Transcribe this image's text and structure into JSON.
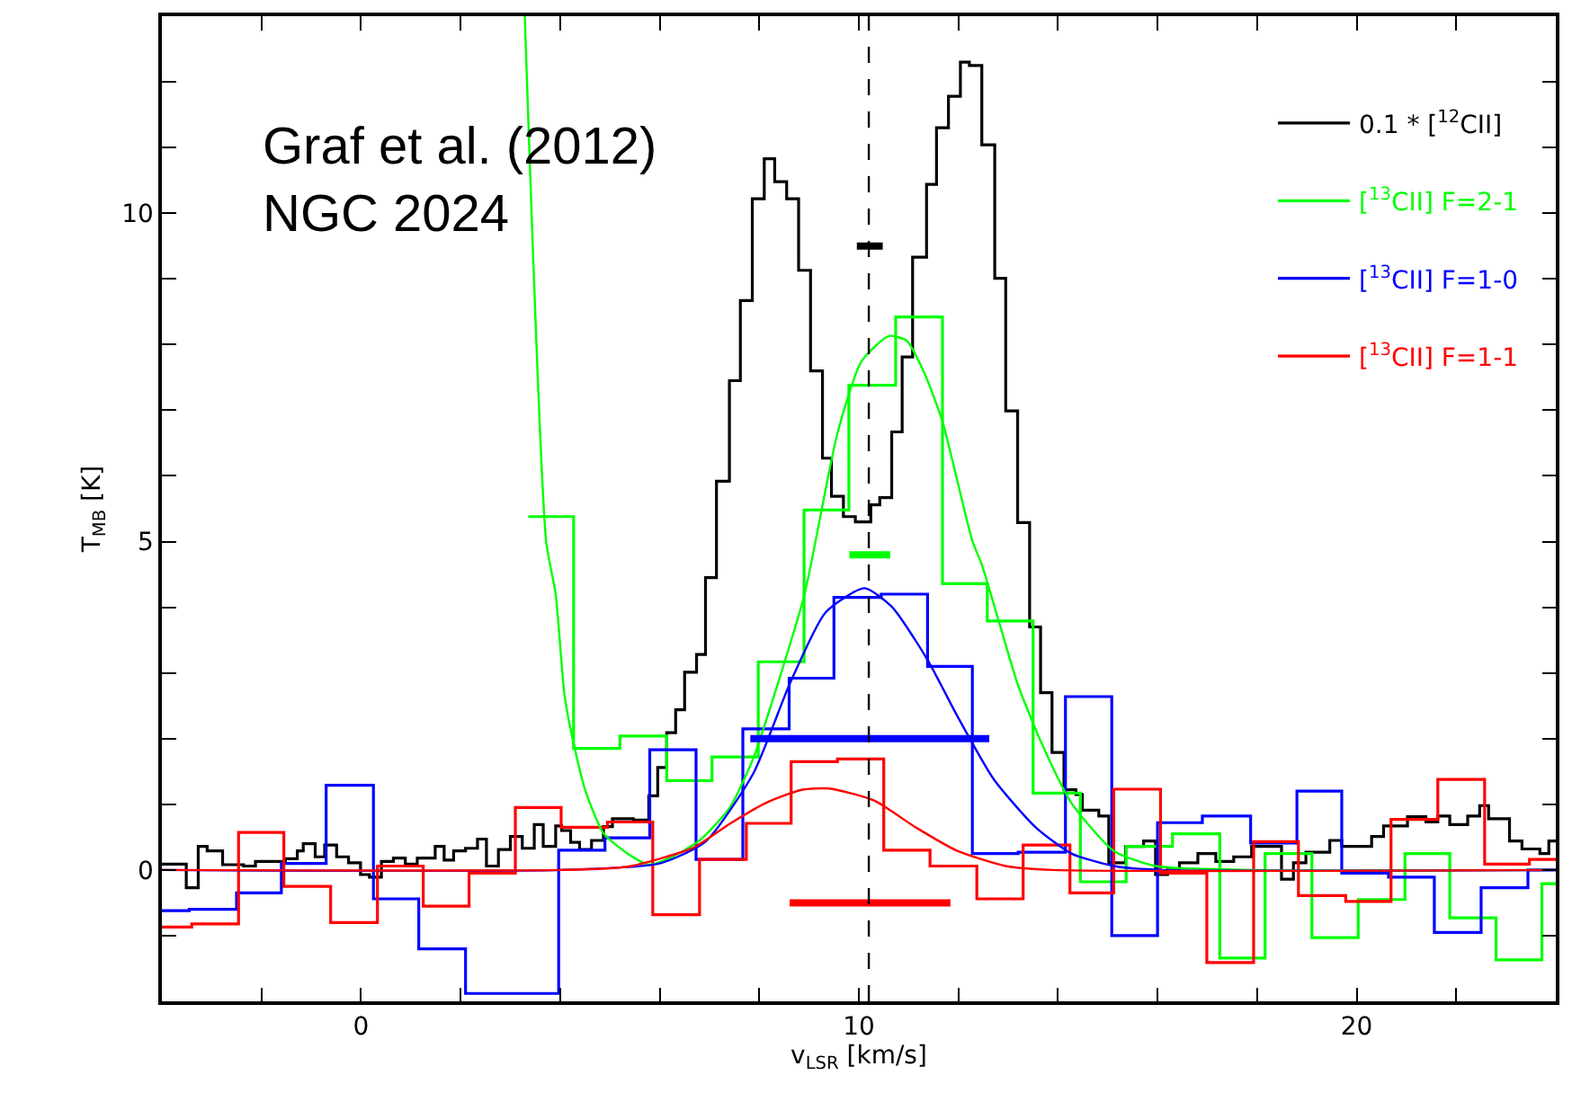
{
  "chart_data": {
    "type": "step",
    "xlabel": "v$_{LSR}$ [km/s]",
    "ylabel": "T$_{MB}$ [K]",
    "annotations": [
      "Graf et al. (2012)\nNGC 2024"
    ],
    "xlim": [
      -4,
      24
    ],
    "ylim": [
      -2,
      13
    ],
    "xticks": [
      {
        "value": -4,
        "label": null
      },
      {
        "value": -2,
        "label": null
      },
      0,
      {
        "value": 2,
        "label": null
      },
      {
        "value": 4,
        "label": null
      },
      {
        "value": 6,
        "label": null
      },
      {
        "value": 8,
        "label": null
      },
      10,
      {
        "value": 12,
        "label": null
      },
      {
        "value": 14,
        "label": null
      },
      {
        "value": 16,
        "label": null
      },
      {
        "value": 18,
        "label": null
      },
      20,
      {
        "value": 22,
        "label": null
      },
      {
        "value": 24,
        "label": null
      }
    ],
    "yticks": [
      {
        "value": -2,
        "label": null
      },
      {
        "value": -1,
        "label": null
      },
      0,
      {
        "value": 1,
        "label": null
      },
      {
        "value": 2,
        "label": null
      },
      {
        "value": 3,
        "label": null
      },
      {
        "value": 4,
        "label": null
      },
      5,
      {
        "value": 6,
        "label": null
      },
      {
        "value": 7,
        "label": null
      },
      {
        "value": 8,
        "label": null
      },
      {
        "value": 9,
        "label": null
      },
      10,
      {
        "value": 11,
        "label": null
      },
      {
        "value": 12,
        "label": null
      },
      {
        "value": 13,
        "label": null
      }
    ],
    "legend": "top right",
    "marker": "none",
    "line_style": "solid",
    "ref_lines": [
      {
        "axis": "x",
        "value": 10.2,
        "label": null,
        "color": "#000000",
        "line_style": "dashed"
      }
    ],
    "series": [
      {
        "name": "0.1 * [$^{12}$CII]",
        "color": "#000000",
        "x": [
          -4,
          -3.51,
          -3.27,
          -3.09,
          -2.78,
          -2.36,
          -2.12,
          -1.52,
          -1.28,
          -1.16,
          -0.92,
          -0.73,
          -0.49,
          -0.25,
          -0.01,
          0.17,
          0.41,
          0.65,
          0.89,
          1.13,
          1.49,
          1.67,
          1.86,
          2.1,
          2.34,
          2.52,
          2.76,
          3.0,
          3.24,
          3.48,
          3.66,
          3.91,
          4.03,
          4.21,
          4.39,
          4.63,
          4.87,
          5.05,
          5.47,
          5.78,
          5.96,
          6.14,
          6.32,
          6.5,
          6.74,
          6.92,
          7.14,
          7.4,
          7.62,
          7.86,
          8.1,
          8.31,
          8.55,
          8.79,
          9.03,
          9.27,
          9.45,
          9.69,
          9.93,
          10.24,
          10.42,
          10.66,
          10.87,
          11.08,
          11.36,
          11.56,
          11.8,
          12.04,
          12.22,
          12.47,
          12.73,
          12.95,
          13.19,
          13.43,
          13.65,
          13.88,
          14.12,
          14.36,
          14.49,
          14.82,
          15.02,
          15.36,
          15.72,
          15.96,
          16.2,
          16.44,
          16.81,
          17.17,
          17.53,
          17.89,
          18.49,
          18.73,
          18.98,
          19.46,
          19.7,
          20.3,
          20.54,
          21.02,
          21.39,
          21.63,
          21.87,
          22.23,
          22.47,
          22.65,
          23.07,
          23.32,
          23.68,
          23.86,
          24
        ],
        "values": [
          0.09,
          -0.27,
          0.36,
          0.29,
          0.08,
          0.06,
          0.13,
          0.17,
          0.29,
          0.4,
          0.2,
          0.38,
          0.2,
          0.11,
          -0.07,
          -0.11,
          0.13,
          0.18,
          0.09,
          0.18,
          0.36,
          0.15,
          0.29,
          0.33,
          0.47,
          0.06,
          0.31,
          0.51,
          0.33,
          0.69,
          0.36,
          0.67,
          0.6,
          0.42,
          0.31,
          0.45,
          0.66,
          0.78,
          0.76,
          1.13,
          1.56,
          2.09,
          2.44,
          3.01,
          3.28,
          4.45,
          5.92,
          7.45,
          8.67,
          10.22,
          10.83,
          10.48,
          10.22,
          9.13,
          7.6,
          6.27,
          5.69,
          5.38,
          5.3,
          5.56,
          5.67,
          6.67,
          7.81,
          9.33,
          10.44,
          11.3,
          11.78,
          12.3,
          12.25,
          11.04,
          9.01,
          6.99,
          5.29,
          3.7,
          2.7,
          1.79,
          1.22,
          1.15,
          0.91,
          0.82,
          0.11,
          0.36,
          0.44,
          -0.07,
          0.0,
          0.11,
          0.25,
          0.13,
          0.2,
          0.36,
          -0.14,
          0.11,
          0.27,
          0.45,
          0.36,
          0.51,
          0.67,
          0.81,
          0.73,
          0.82,
          0.69,
          0.82,
          0.98,
          0.78,
          0.44,
          0.32,
          0.25,
          0.44,
          0.44
        ]
      },
      {
        "name": "[$^{13}$CII] F=2-1",
        "color": "#00ff00",
        "x": [
          3.36,
          4.27,
          5.2,
          6.14,
          7.05,
          7.98,
          8.9,
          9.8,
          10.74,
          11.68,
          12.58,
          13.5,
          14.45,
          15.37,
          16.3,
          17.25,
          18.16,
          19.1,
          20.03,
          20.97,
          21.87,
          22.8,
          23.72,
          24
        ],
        "values": [
          5.38,
          1.85,
          2.04,
          1.36,
          1.72,
          3.17,
          5.48,
          7.38,
          8.42,
          4.36,
          3.79,
          1.17,
          -0.18,
          0.36,
          0.55,
          -1.34,
          0.25,
          -1.03,
          -0.45,
          0.25,
          -0.73,
          -1.37,
          -0.21,
          -0.21
        ]
      },
      {
        "name": "[$^{13}$CII] F=1-0",
        "color": "#0000ff",
        "x": [
          -4,
          -3.45,
          -2.5,
          -1.6,
          -0.7,
          0.25,
          1.16,
          2.1,
          3.97,
          4.9,
          5.8,
          6.73,
          7.67,
          8.6,
          9.5,
          10.45,
          11.38,
          12.28,
          13.2,
          14.15,
          15.08,
          16.0,
          16.9,
          17.87,
          18.8,
          19.7,
          20.64,
          21.56,
          22.5,
          23.44,
          24
        ],
        "values": [
          -0.62,
          -0.6,
          -0.35,
          0.1,
          1.29,
          -0.44,
          -1.2,
          -1.88,
          0.3,
          0.49,
          1.83,
          0.16,
          2.15,
          2.92,
          4.15,
          4.2,
          3.1,
          0.25,
          0.27,
          2.64,
          -1.0,
          0.72,
          0.82,
          0.41,
          1.2,
          -0.05,
          -0.11,
          -0.95,
          -0.27,
          0.0,
          0.0
        ]
      },
      {
        "name": "[$^{13}$CII] F=1-1",
        "color": "#ff0000",
        "x": [
          -4,
          -3.4,
          -2.46,
          -1.55,
          -0.61,
          0.33,
          1.25,
          2.17,
          3.1,
          4.02,
          4.95,
          5.86,
          6.8,
          7.74,
          8.64,
          9.57,
          10.5,
          11.43,
          12.37,
          13.3,
          14.24,
          15.12,
          16.06,
          16.99,
          17.93,
          18.83,
          19.78,
          20.69,
          21.63,
          22.57,
          23.47,
          24
        ],
        "values": [
          -0.87,
          -0.82,
          0.57,
          -0.25,
          -0.8,
          0.06,
          -0.55,
          -0.05,
          0.95,
          0.65,
          0.73,
          -0.68,
          0.16,
          0.71,
          1.65,
          1.69,
          0.3,
          0.06,
          -0.44,
          0.38,
          -0.35,
          1.23,
          -0.05,
          -1.41,
          0.43,
          -0.39,
          -0.48,
          0.77,
          1.38,
          0.09,
          0.16,
          0.16
        ]
      },
      {
        "color": "#00ff00",
        "type": "line",
        "x": [
          3.29,
          3.72,
          3.91,
          4.09,
          4.27,
          4.51,
          4.87,
          5.35,
          5.78,
          6.2,
          6.8,
          7.4,
          7.88,
          8.37,
          8.91,
          9.57,
          10.05,
          10.6,
          10.96,
          11.32,
          11.68,
          11.98,
          12.28,
          12.47,
          12.83,
          13.19,
          13.67,
          14.27,
          15.12,
          15.96,
          18,
          24
        ],
        "values": [
          13,
          5.0,
          4.2,
          2.65,
          1.93,
          1.2,
          0.56,
          0.25,
          0.08,
          0.18,
          0.45,
          0.94,
          1.7,
          2.83,
          4.2,
          6.65,
          7.74,
          8.13,
          8.06,
          7.56,
          6.83,
          5.92,
          5.01,
          4.65,
          3.74,
          2.83,
          1.93,
          1.02,
          0.29,
          0.06,
          0,
          0
        ]
      },
      {
        "color": "#0000ff",
        "type": "line",
        "x": [
          -4,
          4.0,
          6.0,
          6.92,
          7.88,
          8.61,
          9.33,
          10.11,
          10.66,
          11.38,
          11.98,
          12.71,
          13.55,
          14.27,
          15.12,
          16.08,
          24
        ],
        "values": [
          0,
          0,
          0.1,
          0.43,
          1.47,
          2.83,
          3.92,
          4.29,
          4.01,
          3.2,
          2.34,
          1.38,
          0.65,
          0.25,
          0.06,
          0,
          0
        ]
      },
      {
        "color": "#ff0000",
        "type": "line",
        "x": [
          -4,
          4,
          5.35,
          6.68,
          7.4,
          8.13,
          8.85,
          9.4,
          10.3,
          11.14,
          11.98,
          12.95,
          13.9,
          24
        ],
        "values": [
          0,
          0,
          0.05,
          0.34,
          0.7,
          1.02,
          1.22,
          1.24,
          1.06,
          0.65,
          0.29,
          0.06,
          0,
          0
        ]
      },
      {
        "color": "#000000",
        "type": "line",
        "x": [
          9.96,
          10.48
        ],
        "values": [
          9.5,
          9.5
        ]
      },
      {
        "color": "#00ff00",
        "type": "line",
        "x": [
          9.81,
          10.63
        ],
        "values": [
          4.8,
          4.8
        ]
      },
      {
        "color": "#0000ff",
        "type": "line",
        "x": [
          7.82,
          12.62
        ],
        "values": [
          2.0,
          2.0
        ]
      },
      {
        "color": "#ff0000",
        "type": "line",
        "x": [
          8.61,
          11.84
        ],
        "values": [
          -0.5,
          -0.5
        ]
      }
    ]
  }
}
